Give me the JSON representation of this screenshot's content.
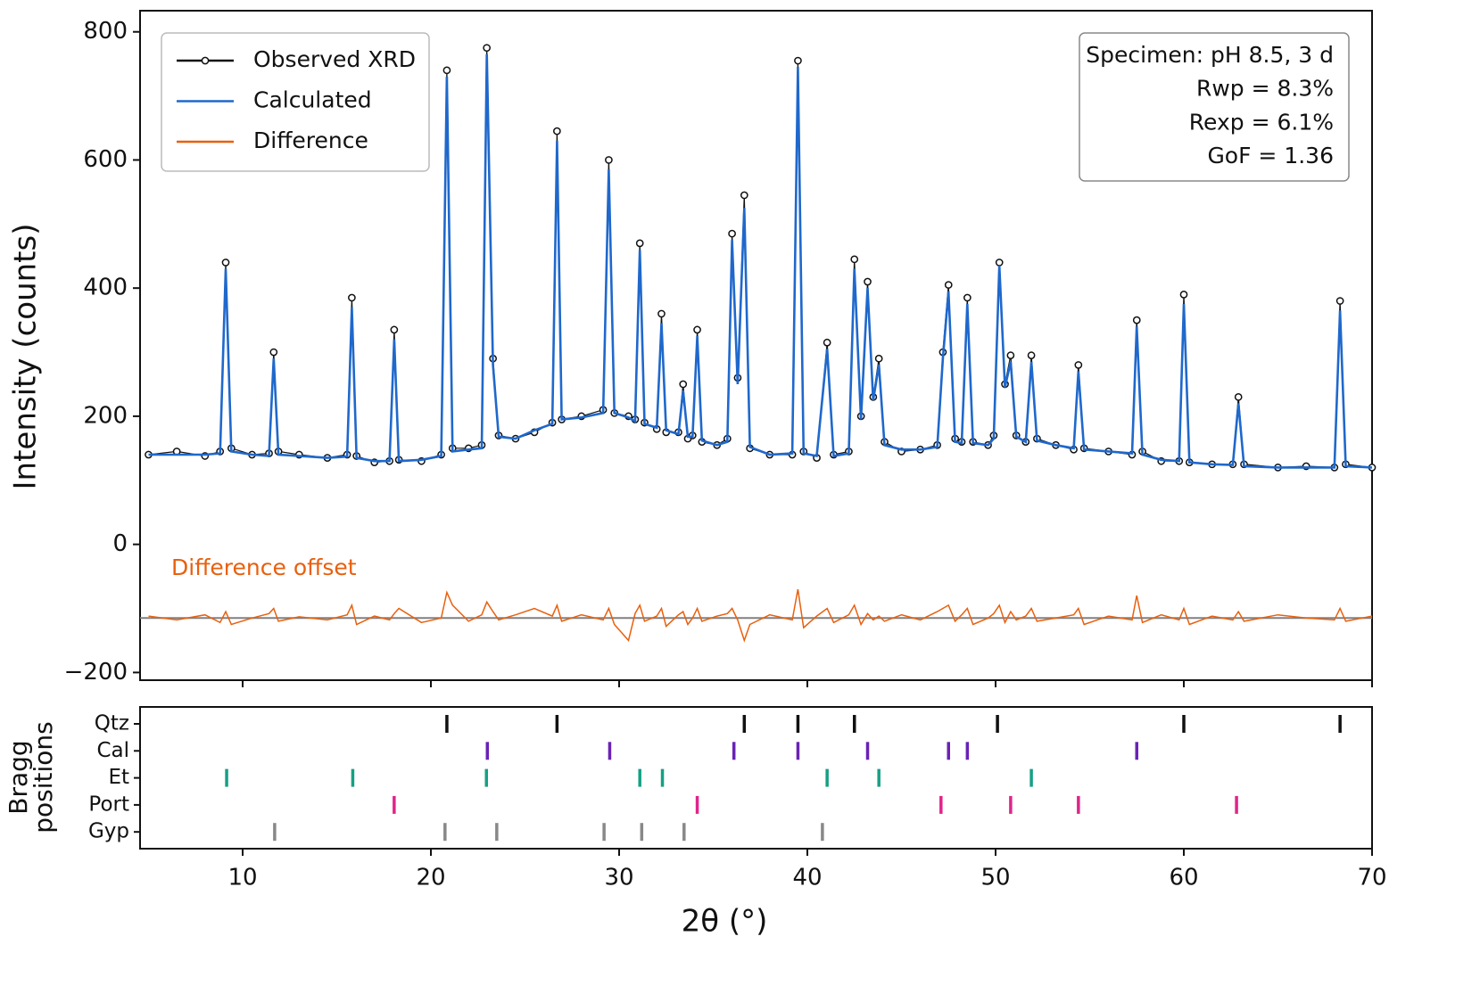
{
  "chart_data": [
    {
      "type": "line",
      "ylabel": "Intensity (counts)",
      "xlim": [
        4.55,
        70
      ],
      "xticks": [
        10,
        20,
        30,
        40,
        50,
        60,
        70
      ],
      "ylim": [
        -212,
        833
      ],
      "yticks": [
        {
          "value": -200,
          "label": "−200"
        },
        0,
        200,
        400,
        600,
        800
      ],
      "legend": "upper left",
      "x": [
        5.0,
        6.5,
        8.0,
        8.8,
        9.1,
        9.4,
        10.5,
        11.4,
        11.65,
        11.9,
        13.0,
        14.5,
        15.55,
        15.8,
        16.05,
        17.0,
        17.8,
        18.05,
        18.3,
        19.5,
        20.55,
        20.85,
        21.15,
        22.0,
        22.7,
        22.97,
        23.3,
        23.6,
        24.5,
        25.5,
        26.45,
        26.7,
        26.95,
        28.0,
        29.15,
        29.45,
        29.75,
        30.5,
        30.85,
        31.1,
        31.35,
        32.0,
        32.25,
        32.5,
        33.15,
        33.4,
        33.65,
        33.9,
        34.15,
        34.4,
        35.2,
        35.75,
        36.0,
        36.3,
        36.65,
        36.95,
        38.0,
        39.2,
        39.5,
        39.8,
        40.5,
        41.05,
        41.4,
        42.2,
        42.5,
        42.85,
        43.2,
        43.5,
        43.8,
        44.1,
        45.0,
        46.0,
        46.9,
        47.2,
        47.5,
        47.85,
        48.2,
        48.5,
        48.8,
        49.6,
        49.9,
        50.2,
        50.5,
        50.8,
        51.1,
        51.6,
        51.9,
        52.2,
        53.2,
        54.15,
        54.4,
        54.7,
        56.0,
        57.25,
        57.5,
        57.8,
        58.8,
        59.75,
        60.0,
        60.3,
        61.5,
        62.6,
        62.9,
        63.2,
        65.0,
        66.5,
        68.0,
        68.3,
        68.6,
        70.0
      ],
      "series": [
        {
          "name": "Observed XRD",
          "color": "#111111",
          "marker": "circle",
          "values": [
            140,
            145,
            138,
            145,
            440,
            150,
            140,
            142,
            300,
            145,
            140,
            135,
            140,
            385,
            138,
            128,
            130,
            335,
            132,
            130,
            140,
            740,
            150,
            150,
            155,
            775,
            290,
            170,
            165,
            175,
            190,
            645,
            195,
            200,
            210,
            600,
            205,
            200,
            195,
            470,
            190,
            180,
            360,
            175,
            175,
            250,
            165,
            170,
            335,
            160,
            155,
            165,
            485,
            260,
            545,
            150,
            140,
            140,
            755,
            145,
            135,
            315,
            140,
            145,
            445,
            200,
            410,
            230,
            290,
            160,
            145,
            148,
            155,
            300,
            405,
            165,
            160,
            385,
            160,
            155,
            170,
            440,
            250,
            295,
            170,
            160,
            295,
            165,
            155,
            148,
            280,
            150,
            145,
            140,
            350,
            145,
            130,
            130,
            390,
            128,
            125,
            125,
            230,
            125,
            120,
            122,
            120,
            380,
            125,
            120
          ]
        },
        {
          "name": "Calculated",
          "color": "#1f68cc",
          "values": [
            140,
            140,
            140,
            142,
            430,
            145,
            140,
            138,
            290,
            140,
            138,
            135,
            137,
            370,
            135,
            130,
            130,
            320,
            130,
            132,
            138,
            730,
            145,
            148,
            150,
            765,
            280,
            168,
            165,
            178,
            188,
            630,
            195,
            198,
            205,
            585,
            205,
            198,
            192,
            460,
            188,
            182,
            345,
            178,
            172,
            240,
            168,
            168,
            325,
            162,
            155,
            160,
            475,
            250,
            525,
            152,
            140,
            142,
            745,
            142,
            138,
            305,
            138,
            142,
            430,
            195,
            400,
            225,
            280,
            155,
            148,
            148,
            152,
            290,
            395,
            160,
            158,
            375,
            158,
            155,
            165,
            435,
            245,
            285,
            168,
            160,
            285,
            162,
            155,
            150,
            270,
            148,
            145,
            142,
            340,
            140,
            132,
            130,
            375,
            128,
            125,
            124,
            220,
            122,
            120,
            120,
            120,
            365,
            122,
            120
          ]
        },
        {
          "name": "Difference",
          "color": "#e8600e",
          "values": [
            -112,
            -118,
            -110,
            -122,
            -105,
            -125,
            -115,
            -108,
            -100,
            -120,
            -113,
            -118,
            -110,
            -95,
            -125,
            -112,
            -118,
            -108,
            -100,
            -122,
            -115,
            -75,
            -95,
            -120,
            -110,
            -90,
            -105,
            -118,
            -110,
            -100,
            -112,
            -95,
            -120,
            -110,
            -118,
            -100,
            -125,
            -150,
            -108,
            -95,
            -120,
            -112,
            -100,
            -128,
            -110,
            -105,
            -125,
            -115,
            -100,
            -120,
            -112,
            -108,
            -100,
            -118,
            -150,
            -125,
            -110,
            -118,
            -70,
            -130,
            -112,
            -100,
            -122,
            -110,
            -95,
            -125,
            -108,
            -118,
            -112,
            -120,
            -110,
            -118,
            -105,
            -100,
            -95,
            -120,
            -110,
            -100,
            -125,
            -115,
            -108,
            -95,
            -122,
            -105,
            -118,
            -112,
            -100,
            -120,
            -115,
            -110,
            -100,
            -125,
            -112,
            -118,
            -80,
            -122,
            -110,
            -118,
            -100,
            -125,
            -112,
            -118,
            -105,
            -120,
            -110,
            -115,
            -118,
            -100,
            -120,
            -112
          ]
        }
      ],
      "difference_offset": -115,
      "difference_offset_color": "#808080",
      "annotation": "Difference offset",
      "stats_box": [
        "Specimen: pH 8.5, 3 d",
        "Rwp = 8.3%",
        "Rexp = 6.1%",
        "GoF = 1.36"
      ]
    },
    {
      "type": "eventplot",
      "ylabel": [
        "Bragg",
        "positions"
      ],
      "xlabel": "2θ (°)",
      "xlim": [
        4.55,
        70
      ],
      "xticks": [
        10,
        20,
        30,
        40,
        50,
        60,
        70
      ],
      "series": [
        {
          "name": "Qtz",
          "color": "#111111",
          "values": [
            20.85,
            26.7,
            36.65,
            39.5,
            42.5,
            50.1,
            60.0,
            68.3
          ]
        },
        {
          "name": "Cal",
          "color": "#6a22b5",
          "values": [
            23.0,
            29.5,
            36.1,
            39.5,
            43.2,
            47.5,
            48.5,
            57.5
          ]
        },
        {
          "name": "Et",
          "color": "#16a085",
          "values": [
            9.15,
            15.85,
            22.95,
            31.1,
            32.3,
            41.05,
            43.8,
            51.9
          ]
        },
        {
          "name": "Port",
          "color": "#e0248c",
          "values": [
            18.05,
            34.15,
            47.1,
            50.8,
            54.4,
            62.8
          ]
        },
        {
          "name": "Gyp",
          "color": "#888888",
          "values": [
            11.7,
            20.75,
            23.5,
            29.2,
            31.2,
            33.45,
            40.8
          ]
        }
      ]
    }
  ]
}
